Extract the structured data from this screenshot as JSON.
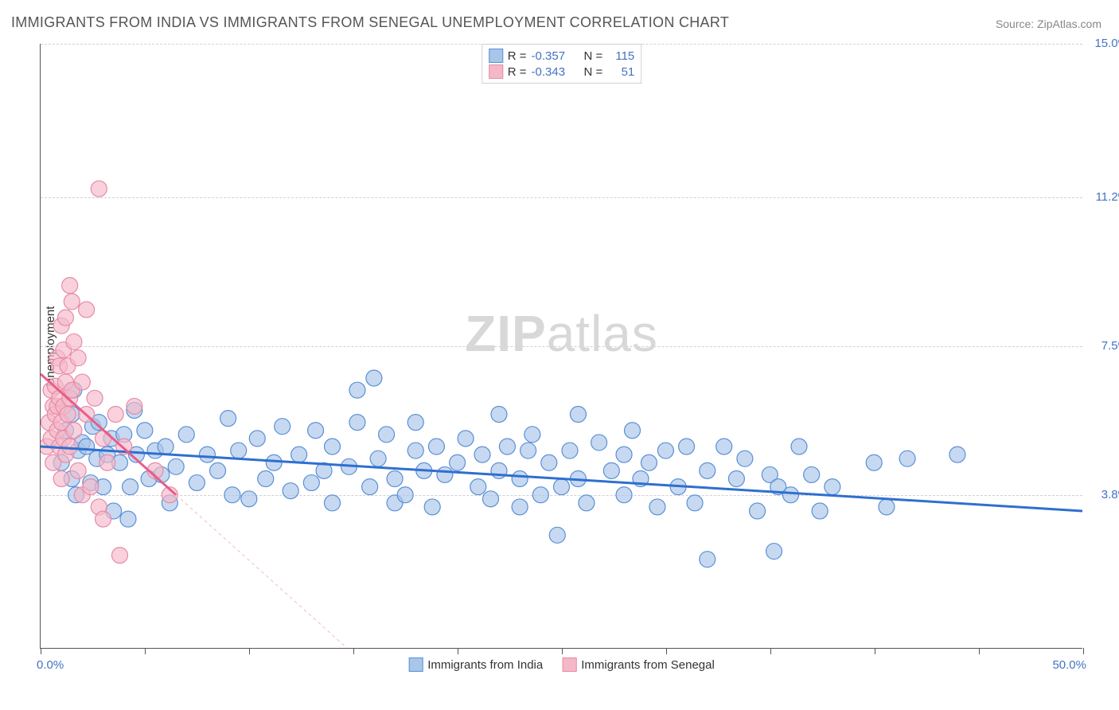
{
  "title": "IMMIGRANTS FROM INDIA VS IMMIGRANTS FROM SENEGAL UNEMPLOYMENT CORRELATION CHART",
  "source": "Source: ZipAtlas.com",
  "watermark_bold": "ZIP",
  "watermark_light": "atlas",
  "chart": {
    "type": "scatter",
    "xlim": [
      0,
      50
    ],
    "ylim": [
      0,
      15
    ],
    "x_label_min": "0.0%",
    "x_label_max": "50.0%",
    "y_axis_label": "Unemployment",
    "y_ticks": [
      {
        "v": 3.8,
        "label": "3.8%"
      },
      {
        "v": 7.5,
        "label": "7.5%"
      },
      {
        "v": 11.2,
        "label": "11.2%"
      },
      {
        "v": 15.0,
        "label": "15.0%"
      }
    ],
    "x_tick_positions": [
      0,
      5,
      10,
      15,
      20,
      25,
      30,
      35,
      40,
      45,
      50
    ],
    "series": [
      {
        "name": "Immigrants from India",
        "color_fill": "#a8c5ea",
        "color_stroke": "#5b8fd6",
        "marker_radius": 10,
        "marker_opacity": 0.65,
        "regression": {
          "x1": 0,
          "y1": 5.0,
          "x2": 50,
          "y2": 3.4,
          "color": "#2f6fd0",
          "width": 3,
          "dash": "none"
        },
        "regression_ext": null,
        "R": "-0.357",
        "N": "115",
        "points": [
          [
            1.0,
            4.6
          ],
          [
            1.2,
            5.4
          ],
          [
            1.5,
            5.8
          ],
          [
            1.5,
            4.2
          ],
          [
            1.6,
            6.4
          ],
          [
            1.7,
            3.8
          ],
          [
            1.8,
            4.9
          ],
          [
            2.0,
            5.1
          ],
          [
            2.2,
            5.0
          ],
          [
            2.4,
            4.1
          ],
          [
            2.5,
            5.5
          ],
          [
            2.7,
            4.7
          ],
          [
            2.8,
            5.6
          ],
          [
            3.0,
            4.0
          ],
          [
            3.2,
            4.8
          ],
          [
            3.4,
            5.2
          ],
          [
            3.5,
            3.4
          ],
          [
            3.8,
            4.6
          ],
          [
            4.0,
            5.3
          ],
          [
            4.2,
            3.2
          ],
          [
            4.3,
            4.0
          ],
          [
            4.5,
            5.9
          ],
          [
            4.6,
            4.8
          ],
          [
            5.0,
            5.4
          ],
          [
            5.2,
            4.2
          ],
          [
            5.5,
            4.9
          ],
          [
            5.8,
            4.3
          ],
          [
            6.0,
            5.0
          ],
          [
            6.2,
            3.6
          ],
          [
            6.5,
            4.5
          ],
          [
            7.0,
            5.3
          ],
          [
            7.5,
            4.1
          ],
          [
            8.0,
            4.8
          ],
          [
            8.5,
            4.4
          ],
          [
            9.0,
            5.7
          ],
          [
            9.2,
            3.8
          ],
          [
            9.5,
            4.9
          ],
          [
            10.0,
            3.7
          ],
          [
            10.4,
            5.2
          ],
          [
            10.8,
            4.2
          ],
          [
            11.2,
            4.6
          ],
          [
            11.6,
            5.5
          ],
          [
            12.0,
            3.9
          ],
          [
            12.4,
            4.8
          ],
          [
            13.0,
            4.1
          ],
          [
            13.2,
            5.4
          ],
          [
            13.6,
            4.4
          ],
          [
            14.0,
            5.0
          ],
          [
            14.0,
            3.6
          ],
          [
            14.8,
            4.5
          ],
          [
            15.2,
            5.6
          ],
          [
            15.2,
            6.4
          ],
          [
            15.8,
            4.0
          ],
          [
            16.0,
            6.7
          ],
          [
            16.2,
            4.7
          ],
          [
            16.6,
            5.3
          ],
          [
            17.0,
            3.6
          ],
          [
            17.0,
            4.2
          ],
          [
            17.5,
            3.8
          ],
          [
            18.0,
            4.9
          ],
          [
            18.0,
            5.6
          ],
          [
            18.4,
            4.4
          ],
          [
            18.8,
            3.5
          ],
          [
            19.0,
            5.0
          ],
          [
            19.4,
            4.3
          ],
          [
            20.0,
            4.6
          ],
          [
            20.4,
            5.2
          ],
          [
            21.0,
            4.0
          ],
          [
            21.2,
            4.8
          ],
          [
            21.6,
            3.7
          ],
          [
            22.0,
            4.4
          ],
          [
            22.0,
            5.8
          ],
          [
            22.4,
            5.0
          ],
          [
            23.0,
            4.2
          ],
          [
            23.0,
            3.5
          ],
          [
            23.4,
            4.9
          ],
          [
            23.6,
            5.3
          ],
          [
            24.0,
            3.8
          ],
          [
            24.4,
            4.6
          ],
          [
            24.8,
            2.8
          ],
          [
            25.0,
            4.0
          ],
          [
            25.4,
            4.9
          ],
          [
            25.8,
            5.8
          ],
          [
            25.8,
            4.2
          ],
          [
            26.2,
            3.6
          ],
          [
            26.8,
            5.1
          ],
          [
            27.4,
            4.4
          ],
          [
            28.0,
            4.8
          ],
          [
            28.0,
            3.8
          ],
          [
            28.4,
            5.4
          ],
          [
            28.8,
            4.2
          ],
          [
            29.2,
            4.6
          ],
          [
            29.6,
            3.5
          ],
          [
            30.0,
            4.9
          ],
          [
            30.6,
            4.0
          ],
          [
            31.0,
            5.0
          ],
          [
            31.4,
            3.6
          ],
          [
            32.0,
            4.4
          ],
          [
            32.0,
            2.2
          ],
          [
            32.8,
            5.0
          ],
          [
            33.4,
            4.2
          ],
          [
            33.8,
            4.7
          ],
          [
            34.4,
            3.4
          ],
          [
            35.0,
            4.3
          ],
          [
            35.2,
            2.4
          ],
          [
            35.4,
            4.0
          ],
          [
            36.0,
            3.8
          ],
          [
            36.4,
            5.0
          ],
          [
            37.0,
            4.3
          ],
          [
            37.4,
            3.4
          ],
          [
            38.0,
            4.0
          ],
          [
            40.0,
            4.6
          ],
          [
            40.6,
            3.5
          ],
          [
            41.6,
            4.7
          ],
          [
            44.0,
            4.8
          ]
        ]
      },
      {
        "name": "Immigrants from Senegal",
        "color_fill": "#f5b8c9",
        "color_stroke": "#e78aa6",
        "marker_radius": 10,
        "marker_opacity": 0.65,
        "regression": {
          "x1": 0,
          "y1": 6.8,
          "x2": 6.5,
          "y2": 3.8,
          "color": "#e75d8a",
          "width": 3,
          "dash": "none"
        },
        "regression_ext": {
          "x1": 6.5,
          "y1": 3.8,
          "x2": 14.7,
          "y2": 0,
          "color": "#f0b8c8",
          "width": 1,
          "dash": "4,4"
        },
        "R": "-0.343",
        "N": "51",
        "points": [
          [
            0.3,
            5.0
          ],
          [
            0.4,
            5.6
          ],
          [
            0.5,
            6.4
          ],
          [
            0.5,
            5.2
          ],
          [
            0.6,
            6.0
          ],
          [
            0.6,
            4.6
          ],
          [
            0.7,
            5.8
          ],
          [
            0.7,
            6.5
          ],
          [
            0.8,
            5.4
          ],
          [
            0.8,
            7.2
          ],
          [
            0.8,
            6.0
          ],
          [
            0.9,
            5.0
          ],
          [
            0.9,
            7.0
          ],
          [
            0.9,
            6.2
          ],
          [
            1.0,
            8.0
          ],
          [
            1.0,
            5.6
          ],
          [
            1.0,
            4.2
          ],
          [
            1.1,
            7.4
          ],
          [
            1.1,
            6.0
          ],
          [
            1.1,
            5.2
          ],
          [
            1.2,
            8.2
          ],
          [
            1.2,
            6.6
          ],
          [
            1.2,
            4.8
          ],
          [
            1.3,
            5.8
          ],
          [
            1.3,
            7.0
          ],
          [
            1.4,
            9.0
          ],
          [
            1.4,
            6.2
          ],
          [
            1.4,
            5.0
          ],
          [
            1.5,
            8.6
          ],
          [
            1.5,
            6.4
          ],
          [
            1.6,
            7.6
          ],
          [
            1.6,
            5.4
          ],
          [
            1.8,
            7.2
          ],
          [
            1.8,
            4.4
          ],
          [
            2.0,
            6.6
          ],
          [
            2.0,
            3.8
          ],
          [
            2.2,
            8.4
          ],
          [
            2.2,
            5.8
          ],
          [
            2.4,
            4.0
          ],
          [
            2.6,
            6.2
          ],
          [
            2.8,
            3.5
          ],
          [
            2.8,
            11.4
          ],
          [
            3.0,
            5.2
          ],
          [
            3.0,
            3.2
          ],
          [
            3.2,
            4.6
          ],
          [
            3.6,
            5.8
          ],
          [
            3.8,
            2.3
          ],
          [
            4.0,
            5.0
          ],
          [
            4.5,
            6.0
          ],
          [
            5.5,
            4.4
          ],
          [
            6.2,
            3.8
          ]
        ]
      }
    ],
    "legend_top": {
      "stat_labels": {
        "r": "R =",
        "n": "N ="
      }
    },
    "legend_bottom": [
      {
        "label": "Immigrants from India",
        "color_fill": "#a8c5ea",
        "color_stroke": "#5b8fd6"
      },
      {
        "label": "Immigrants from Senegal",
        "color_fill": "#f5b8c9",
        "color_stroke": "#e78aa6"
      }
    ],
    "background_color": "#ffffff",
    "grid_color": "#d0d0d0",
    "axis_color": "#555555",
    "tick_label_color": "#4472c4"
  }
}
